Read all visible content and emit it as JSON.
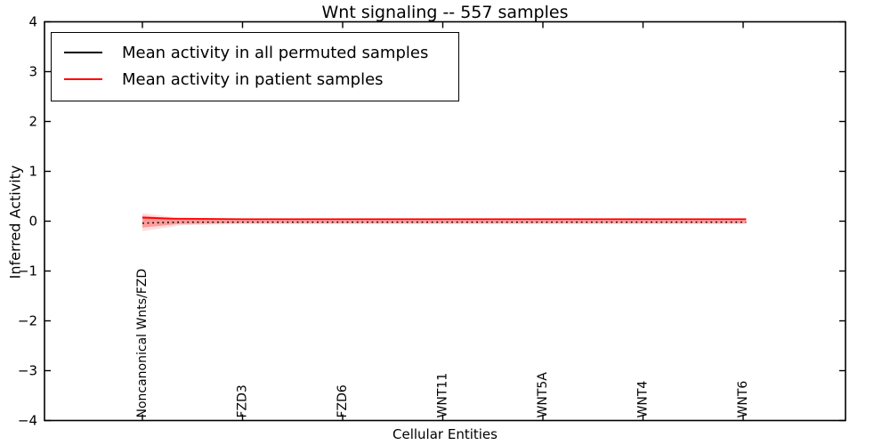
{
  "figure": {
    "title": "Wnt signaling -- 557 samples",
    "xlabel": "Cellular Entities",
    "ylabel": "Inferred Activity"
  },
  "legend": {
    "position": "upper left",
    "entries": [
      {
        "label": "Mean activity in all permuted samples",
        "color": "#000000"
      },
      {
        "label": "Mean activity in patient samples",
        "color": "#ff0000"
      }
    ]
  },
  "chart_data": {
    "type": "line",
    "title": "Wnt signaling -- 557 samples",
    "xlabel": "Cellular Entities",
    "ylabel": "Inferred Activity",
    "ylim": [
      -4,
      4
    ],
    "ytick_labels": [
      "−4",
      "−3",
      "−2",
      "−1",
      "0",
      "1",
      "2",
      "3",
      "4"
    ],
    "yticks": [
      -4,
      -3,
      -2,
      -1,
      0,
      1,
      2,
      3,
      4
    ],
    "xtick_labels": [
      "Noncanonical Wnts/FZD",
      "FZD3",
      "FZD6",
      "WNT11",
      "WNT5A",
      "WNT4",
      "WNT6"
    ],
    "x_domain": [
      0,
      6.03
    ],
    "grid": false,
    "legend_position": "upper left",
    "series": [
      {
        "name": "Mean activity in all permuted samples",
        "color": "#000000",
        "style": "dotted",
        "points": [
          [
            0,
            -0.04
          ],
          [
            0.15,
            -0.03
          ],
          [
            0.4,
            -0.02
          ],
          [
            1,
            -0.02
          ],
          [
            2,
            -0.02
          ],
          [
            3,
            -0.02
          ],
          [
            4,
            -0.02
          ],
          [
            5,
            -0.02
          ],
          [
            6,
            -0.02
          ],
          [
            6.03,
            -0.02
          ]
        ]
      },
      {
        "name": "Mean activity in patient samples",
        "color": "#ff0000",
        "style": "solid",
        "points": [
          [
            0,
            0.07
          ],
          [
            0.3,
            0.05
          ],
          [
            1,
            0.04
          ],
          [
            2,
            0.04
          ],
          [
            3,
            0.04
          ],
          [
            4,
            0.04
          ],
          [
            5,
            0.04
          ],
          [
            6,
            0.04
          ],
          [
            6.03,
            0.04
          ]
        ]
      }
    ],
    "bands": [
      {
        "name": "permuted-std-outer",
        "color": "rgba(255,0,0,0.13)",
        "upper": [
          [
            0,
            0.16
          ],
          [
            0.4,
            0.06
          ],
          [
            1,
            0.05
          ],
          [
            6.03,
            0.05
          ]
        ],
        "lower": [
          [
            0,
            -0.2
          ],
          [
            0.4,
            -0.08
          ],
          [
            1,
            -0.06
          ],
          [
            6.03,
            -0.06
          ]
        ]
      },
      {
        "name": "permuted-std-inner",
        "color": "rgba(255,0,0,0.30)",
        "upper": [
          [
            0,
            0.11
          ],
          [
            0.35,
            0.05
          ],
          [
            1,
            0.04
          ],
          [
            6.03,
            0.04
          ]
        ],
        "lower": [
          [
            0,
            -0.13
          ],
          [
            0.35,
            -0.06
          ],
          [
            1,
            -0.04
          ],
          [
            6.03,
            -0.04
          ]
        ]
      }
    ]
  }
}
